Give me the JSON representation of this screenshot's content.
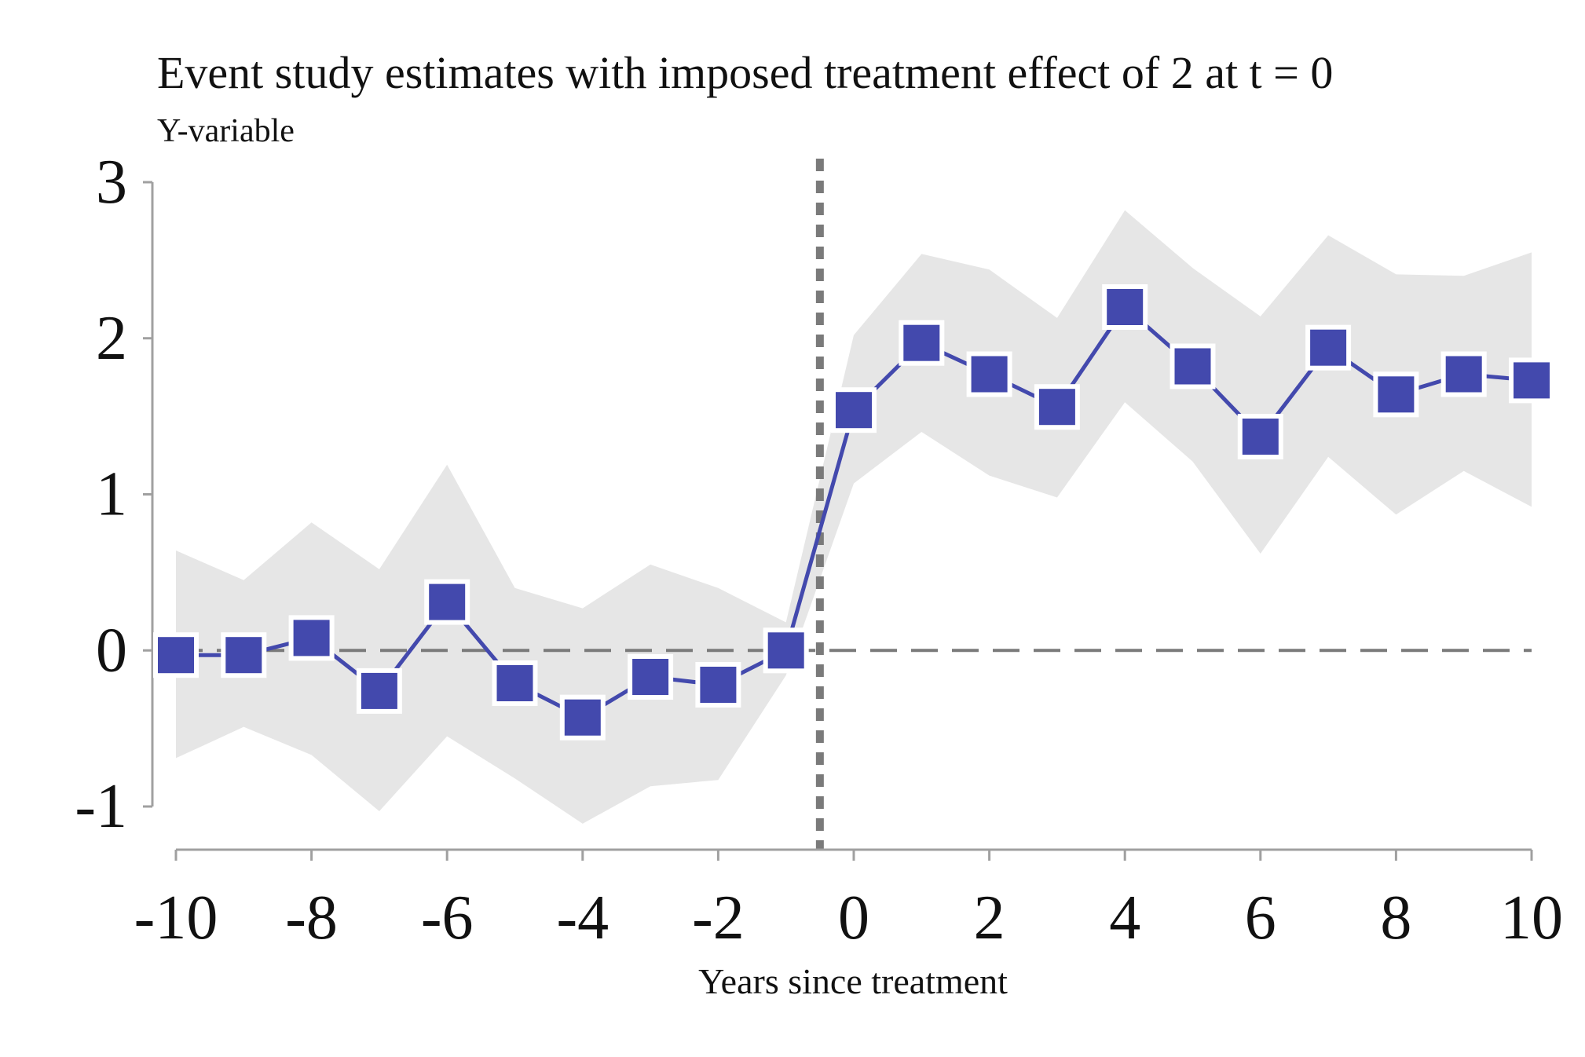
{
  "chart_data": {
    "type": "line",
    "title": "Event study estimates with imposed treatment effect of 2 at t = 0",
    "subtitle": "Y-variable",
    "xlabel": "Years since treatment",
    "ylabel": "",
    "xlim": [
      -10,
      10
    ],
    "ylim": [
      -1,
      3
    ],
    "x_ticks": [
      -10,
      -8,
      -6,
      -4,
      -2,
      0,
      2,
      4,
      6,
      8,
      10
    ],
    "y_ticks": [
      -1,
      0,
      1,
      2,
      3
    ],
    "grid": false,
    "reference_lines": {
      "horizontal_y": 0,
      "vertical_x": -0.5
    },
    "series": [
      {
        "x": [
          -10,
          -9,
          -8,
          -7,
          -6,
          -5,
          -4,
          -3,
          -2,
          -1,
          0,
          1,
          2,
          3,
          4,
          5,
          6,
          7,
          8,
          9,
          10
        ],
        "values": [
          -0.03,
          -0.03,
          0.08,
          -0.26,
          0.31,
          -0.21,
          -0.43,
          -0.17,
          -0.22,
          0.0,
          1.54,
          1.97,
          1.77,
          1.56,
          2.2,
          1.82,
          1.37,
          1.94,
          1.64,
          1.77,
          1.73
        ],
        "ci_lower": [
          -0.69,
          -0.49,
          -0.67,
          -1.03,
          -0.55,
          -0.82,
          -1.11,
          -0.87,
          -0.83,
          -0.16,
          1.07,
          1.4,
          1.12,
          0.98,
          1.59,
          1.21,
          0.62,
          1.24,
          0.87,
          1.15,
          0.92
        ],
        "ci_upper": [
          0.64,
          0.45,
          0.82,
          0.52,
          1.19,
          0.4,
          0.27,
          0.55,
          0.4,
          0.18,
          2.02,
          2.54,
          2.44,
          2.13,
          2.82,
          2.45,
          2.14,
          2.66,
          2.41,
          2.4,
          2.55
        ]
      }
    ],
    "colors": {
      "series": "#4349ad",
      "ci_band": "#e6e6e6",
      "reference_line": "#7a7a7a",
      "axis": "#a0a0a0"
    }
  }
}
